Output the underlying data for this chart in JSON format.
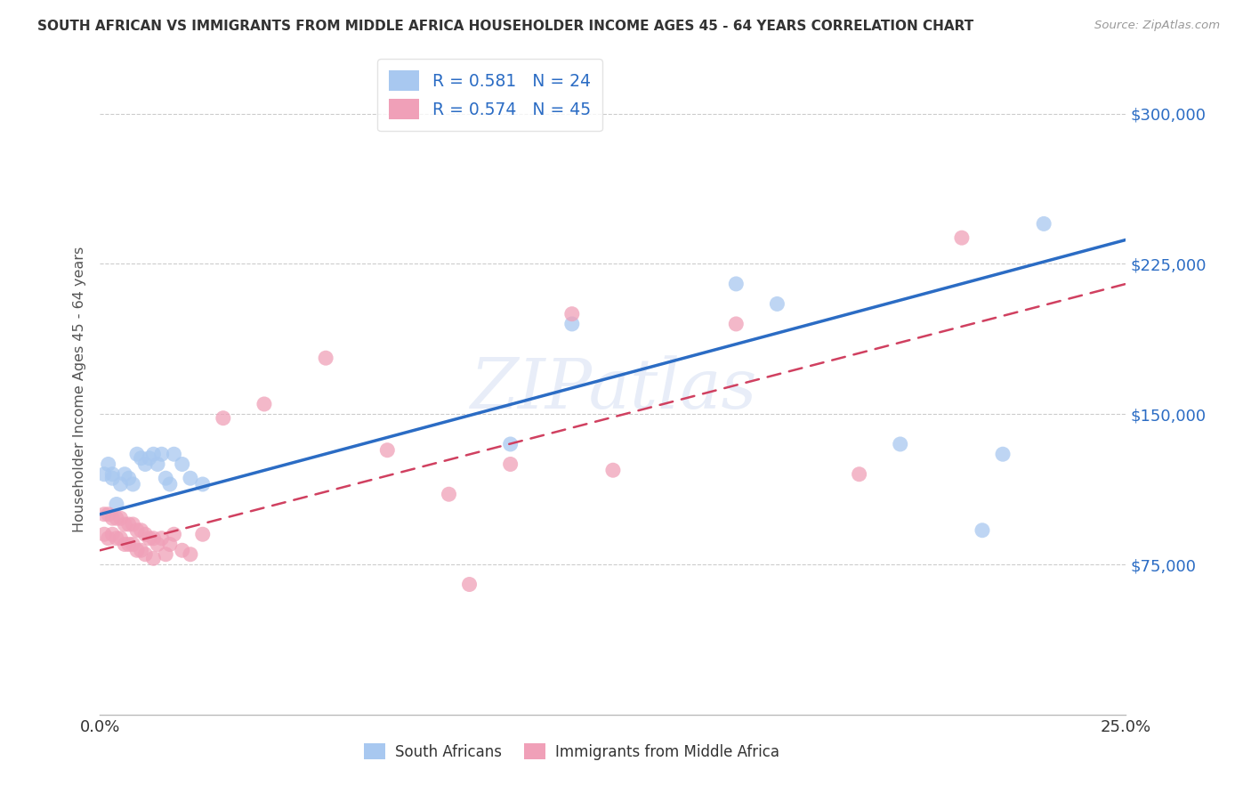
{
  "title": "SOUTH AFRICAN VS IMMIGRANTS FROM MIDDLE AFRICA HOUSEHOLDER INCOME AGES 45 - 64 YEARS CORRELATION CHART",
  "source": "Source: ZipAtlas.com",
  "ylabel": "Householder Income Ages 45 - 64 years",
  "xmin": 0.0,
  "xmax": 0.25,
  "ymin": 0,
  "ymax": 325000,
  "yticks": [
    75000,
    150000,
    225000,
    300000
  ],
  "ytick_labels": [
    "$75,000",
    "$150,000",
    "$225,000",
    "$300,000"
  ],
  "xticks": [
    0.0,
    0.05,
    0.1,
    0.15,
    0.2,
    0.25
  ],
  "xtick_labels": [
    "0.0%",
    "",
    "",
    "",
    "",
    "25.0%"
  ],
  "blue_color": "#a8c8f0",
  "pink_color": "#f0a0b8",
  "blue_line_color": "#2b6cc4",
  "pink_line_color": "#d04060",
  "blue_text_color": "#2b6cc4",
  "watermark": "ZIPatlas",
  "blue_line_x0": 0.0,
  "blue_line_y0": 100000,
  "blue_line_x1": 0.25,
  "blue_line_y1": 237000,
  "pink_line_x0": 0.0,
  "pink_line_y0": 82000,
  "pink_line_x1": 0.25,
  "pink_line_y1": 215000,
  "sa_x": [
    0.001,
    0.002,
    0.003,
    0.003,
    0.004,
    0.005,
    0.006,
    0.007,
    0.008,
    0.009,
    0.01,
    0.011,
    0.012,
    0.013,
    0.014,
    0.015,
    0.016,
    0.017,
    0.018,
    0.02,
    0.022,
    0.025,
    0.1,
    0.115,
    0.155,
    0.165,
    0.195,
    0.215,
    0.22,
    0.23
  ],
  "sa_y": [
    120000,
    125000,
    120000,
    118000,
    105000,
    115000,
    120000,
    118000,
    115000,
    130000,
    128000,
    125000,
    128000,
    130000,
    125000,
    130000,
    118000,
    115000,
    130000,
    125000,
    118000,
    115000,
    135000,
    195000,
    215000,
    205000,
    135000,
    92000,
    130000,
    245000
  ],
  "im_x": [
    0.001,
    0.001,
    0.002,
    0.002,
    0.003,
    0.003,
    0.004,
    0.004,
    0.005,
    0.005,
    0.006,
    0.006,
    0.007,
    0.007,
    0.008,
    0.008,
    0.009,
    0.009,
    0.01,
    0.01,
    0.011,
    0.011,
    0.012,
    0.013,
    0.013,
    0.014,
    0.015,
    0.016,
    0.017,
    0.018,
    0.02,
    0.022,
    0.025,
    0.03,
    0.04,
    0.055,
    0.07,
    0.085,
    0.09,
    0.1,
    0.115,
    0.125,
    0.155,
    0.185,
    0.21
  ],
  "im_y": [
    100000,
    90000,
    100000,
    88000,
    98000,
    90000,
    98000,
    88000,
    98000,
    88000,
    95000,
    85000,
    95000,
    85000,
    95000,
    85000,
    92000,
    82000,
    92000,
    82000,
    90000,
    80000,
    88000,
    88000,
    78000,
    85000,
    88000,
    80000,
    85000,
    90000,
    82000,
    80000,
    90000,
    148000,
    155000,
    178000,
    132000,
    110000,
    65000,
    125000,
    200000,
    122000,
    195000,
    120000,
    238000
  ]
}
